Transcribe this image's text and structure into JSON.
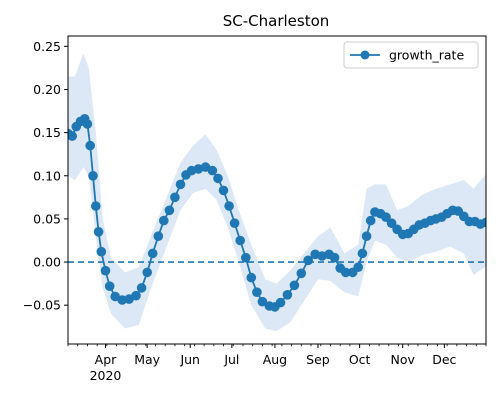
{
  "chart_data": {
    "type": "line",
    "title": "SC-Charleston",
    "xlabel": "",
    "ylabel": "",
    "x_range": [
      "2020-03-05",
      "2020-12-31"
    ],
    "ylim": [
      -0.095,
      0.262
    ],
    "y_ticks": [
      -0.05,
      0.0,
      0.05,
      0.1,
      0.15,
      0.2,
      0.25
    ],
    "y_tick_labels": [
      "−0.05",
      "0.00",
      "0.05",
      "0.10",
      "0.15",
      "0.20",
      "0.25"
    ],
    "x_ticks": [
      {
        "date": "2020-04-01",
        "label": "Apr",
        "sublabel": "2020"
      },
      {
        "date": "2020-05-01",
        "label": "May",
        "sublabel": ""
      },
      {
        "date": "2020-06-01",
        "label": "Jun",
        "sublabel": ""
      },
      {
        "date": "2020-07-01",
        "label": "Jul",
        "sublabel": ""
      },
      {
        "date": "2020-08-01",
        "label": "Aug",
        "sublabel": ""
      },
      {
        "date": "2020-09-01",
        "label": "Sep",
        "sublabel": ""
      },
      {
        "date": "2020-10-01",
        "label": "Oct",
        "sublabel": ""
      },
      {
        "date": "2020-11-01",
        "label": "Nov",
        "sublabel": ""
      },
      {
        "date": "2020-12-01",
        "label": "Dec",
        "sublabel": ""
      }
    ],
    "legend": {
      "placement": "upper-right",
      "entries": [
        "growth_rate"
      ]
    },
    "grid": false,
    "reference_line": {
      "y": 0.0,
      "style": "dashed"
    },
    "colors": {
      "series": "#1f77b4",
      "band": "#dce8f5",
      "axis": "#000000"
    },
    "series": [
      {
        "name": "growth_rate",
        "marker": "circle",
        "points": [
          {
            "date": "2020-03-05",
            "y": 0.149
          },
          {
            "date": "2020-03-08",
            "y": 0.146
          },
          {
            "date": "2020-03-11",
            "y": 0.157
          },
          {
            "date": "2020-03-14",
            "y": 0.163
          },
          {
            "date": "2020-03-17",
            "y": 0.166
          },
          {
            "date": "2020-03-19",
            "y": 0.16
          },
          {
            "date": "2020-03-21",
            "y": 0.135
          },
          {
            "date": "2020-03-23",
            "y": 0.1
          },
          {
            "date": "2020-03-25",
            "y": 0.065
          },
          {
            "date": "2020-03-27",
            "y": 0.035
          },
          {
            "date": "2020-03-29",
            "y": 0.012
          },
          {
            "date": "2020-04-01",
            "y": -0.01
          },
          {
            "date": "2020-04-04",
            "y": -0.028
          },
          {
            "date": "2020-04-08",
            "y": -0.04
          },
          {
            "date": "2020-04-13",
            "y": -0.044
          },
          {
            "date": "2020-04-18",
            "y": -0.043
          },
          {
            "date": "2020-04-23",
            "y": -0.039
          },
          {
            "date": "2020-04-27",
            "y": -0.03
          },
          {
            "date": "2020-05-01",
            "y": -0.012
          },
          {
            "date": "2020-05-05",
            "y": 0.01
          },
          {
            "date": "2020-05-09",
            "y": 0.03
          },
          {
            "date": "2020-05-13",
            "y": 0.048
          },
          {
            "date": "2020-05-17",
            "y": 0.06
          },
          {
            "date": "2020-05-21",
            "y": 0.075
          },
          {
            "date": "2020-05-25",
            "y": 0.09
          },
          {
            "date": "2020-05-29",
            "y": 0.101
          },
          {
            "date": "2020-06-02",
            "y": 0.106
          },
          {
            "date": "2020-06-07",
            "y": 0.108
          },
          {
            "date": "2020-06-12",
            "y": 0.11
          },
          {
            "date": "2020-06-17",
            "y": 0.106
          },
          {
            "date": "2020-06-21",
            "y": 0.097
          },
          {
            "date": "2020-06-25",
            "y": 0.083
          },
          {
            "date": "2020-06-29",
            "y": 0.065
          },
          {
            "date": "2020-07-03",
            "y": 0.045
          },
          {
            "date": "2020-07-07",
            "y": 0.025
          },
          {
            "date": "2020-07-11",
            "y": 0.005
          },
          {
            "date": "2020-07-15",
            "y": -0.018
          },
          {
            "date": "2020-07-19",
            "y": -0.035
          },
          {
            "date": "2020-07-23",
            "y": -0.046
          },
          {
            "date": "2020-07-28",
            "y": -0.051
          },
          {
            "date": "2020-08-01",
            "y": -0.052
          },
          {
            "date": "2020-08-05",
            "y": -0.047
          },
          {
            "date": "2020-08-10",
            "y": -0.038
          },
          {
            "date": "2020-08-15",
            "y": -0.027
          },
          {
            "date": "2020-08-20",
            "y": -0.013
          },
          {
            "date": "2020-08-25",
            "y": 0.002
          },
          {
            "date": "2020-08-30",
            "y": 0.009
          },
          {
            "date": "2020-09-04",
            "y": 0.007
          },
          {
            "date": "2020-09-09",
            "y": 0.009
          },
          {
            "date": "2020-09-13",
            "y": 0.005
          },
          {
            "date": "2020-09-17",
            "y": -0.007
          },
          {
            "date": "2020-09-21",
            "y": -0.012
          },
          {
            "date": "2020-09-26",
            "y": -0.012
          },
          {
            "date": "2020-09-30",
            "y": -0.006
          },
          {
            "date": "2020-10-03",
            "y": 0.01
          },
          {
            "date": "2020-10-06",
            "y": 0.03
          },
          {
            "date": "2020-10-09",
            "y": 0.048
          },
          {
            "date": "2020-10-12",
            "y": 0.058
          },
          {
            "date": "2020-10-16",
            "y": 0.056
          },
          {
            "date": "2020-10-20",
            "y": 0.052
          },
          {
            "date": "2020-10-24",
            "y": 0.045
          },
          {
            "date": "2020-10-28",
            "y": 0.038
          },
          {
            "date": "2020-11-01",
            "y": 0.032
          },
          {
            "date": "2020-11-05",
            "y": 0.033
          },
          {
            "date": "2020-11-09",
            "y": 0.038
          },
          {
            "date": "2020-11-13",
            "y": 0.043
          },
          {
            "date": "2020-11-17",
            "y": 0.045
          },
          {
            "date": "2020-11-21",
            "y": 0.048
          },
          {
            "date": "2020-11-25",
            "y": 0.05
          },
          {
            "date": "2020-11-29",
            "y": 0.052
          },
          {
            "date": "2020-12-03",
            "y": 0.056
          },
          {
            "date": "2020-12-07",
            "y": 0.06
          },
          {
            "date": "2020-12-11",
            "y": 0.059
          },
          {
            "date": "2020-12-15",
            "y": 0.053
          },
          {
            "date": "2020-12-19",
            "y": 0.047
          },
          {
            "date": "2020-12-23",
            "y": 0.047
          },
          {
            "date": "2020-12-27",
            "y": 0.044
          },
          {
            "date": "2020-12-31",
            "y": 0.046
          }
        ],
        "band": {
          "upper": [
            {
              "date": "2020-03-05",
              "y": 0.215
            },
            {
              "date": "2020-03-10",
              "y": 0.215
            },
            {
              "date": "2020-03-16",
              "y": 0.242
            },
            {
              "date": "2020-03-20",
              "y": 0.225
            },
            {
              "date": "2020-03-25",
              "y": 0.15
            },
            {
              "date": "2020-03-30",
              "y": 0.05
            },
            {
              "date": "2020-04-05",
              "y": 0.005
            },
            {
              "date": "2020-04-15",
              "y": -0.012
            },
            {
              "date": "2020-04-25",
              "y": -0.006
            },
            {
              "date": "2020-05-05",
              "y": 0.035
            },
            {
              "date": "2020-05-15",
              "y": 0.075
            },
            {
              "date": "2020-05-25",
              "y": 0.115
            },
            {
              "date": "2020-06-03",
              "y": 0.135
            },
            {
              "date": "2020-06-12",
              "y": 0.148
            },
            {
              "date": "2020-06-20",
              "y": 0.13
            },
            {
              "date": "2020-06-28",
              "y": 0.1
            },
            {
              "date": "2020-07-06",
              "y": 0.06
            },
            {
              "date": "2020-07-15",
              "y": 0.02
            },
            {
              "date": "2020-07-25",
              "y": -0.02
            },
            {
              "date": "2020-08-02",
              "y": -0.025
            },
            {
              "date": "2020-08-12",
              "y": -0.01
            },
            {
              "date": "2020-08-22",
              "y": 0.01
            },
            {
              "date": "2020-09-01",
              "y": 0.03
            },
            {
              "date": "2020-09-10",
              "y": 0.04
            },
            {
              "date": "2020-09-20",
              "y": 0.01
            },
            {
              "date": "2020-09-30",
              "y": 0.02
            },
            {
              "date": "2020-10-06",
              "y": 0.085
            },
            {
              "date": "2020-10-12",
              "y": 0.09
            },
            {
              "date": "2020-10-20",
              "y": 0.09
            },
            {
              "date": "2020-10-28",
              "y": 0.06
            },
            {
              "date": "2020-11-05",
              "y": 0.065
            },
            {
              "date": "2020-11-15",
              "y": 0.078
            },
            {
              "date": "2020-11-25",
              "y": 0.085
            },
            {
              "date": "2020-12-05",
              "y": 0.09
            },
            {
              "date": "2020-12-15",
              "y": 0.095
            },
            {
              "date": "2020-12-22",
              "y": 0.085
            },
            {
              "date": "2020-12-31",
              "y": 0.102
            }
          ],
          "lower": [
            {
              "date": "2020-03-05",
              "y": 0.1
            },
            {
              "date": "2020-03-10",
              "y": 0.095
            },
            {
              "date": "2020-03-16",
              "y": 0.11
            },
            {
              "date": "2020-03-20",
              "y": 0.1
            },
            {
              "date": "2020-03-25",
              "y": 0.03
            },
            {
              "date": "2020-03-30",
              "y": -0.03
            },
            {
              "date": "2020-04-05",
              "y": -0.06
            },
            {
              "date": "2020-04-15",
              "y": -0.077
            },
            {
              "date": "2020-04-25",
              "y": -0.073
            },
            {
              "date": "2020-05-05",
              "y": -0.025
            },
            {
              "date": "2020-05-15",
              "y": 0.018
            },
            {
              "date": "2020-05-25",
              "y": 0.06
            },
            {
              "date": "2020-06-03",
              "y": 0.08
            },
            {
              "date": "2020-06-12",
              "y": 0.085
            },
            {
              "date": "2020-06-20",
              "y": 0.072
            },
            {
              "date": "2020-06-28",
              "y": 0.04
            },
            {
              "date": "2020-07-06",
              "y": 0.0
            },
            {
              "date": "2020-07-15",
              "y": -0.05
            },
            {
              "date": "2020-07-25",
              "y": -0.077
            },
            {
              "date": "2020-08-02",
              "y": -0.08
            },
            {
              "date": "2020-08-12",
              "y": -0.07
            },
            {
              "date": "2020-08-22",
              "y": -0.045
            },
            {
              "date": "2020-09-01",
              "y": -0.02
            },
            {
              "date": "2020-09-10",
              "y": -0.022
            },
            {
              "date": "2020-09-20",
              "y": -0.035
            },
            {
              "date": "2020-09-30",
              "y": -0.04
            },
            {
              "date": "2020-10-06",
              "y": 0.0
            },
            {
              "date": "2020-10-12",
              "y": 0.025
            },
            {
              "date": "2020-10-20",
              "y": 0.02
            },
            {
              "date": "2020-10-28",
              "y": 0.005
            },
            {
              "date": "2020-11-05",
              "y": 0.0
            },
            {
              "date": "2020-11-15",
              "y": 0.008
            },
            {
              "date": "2020-11-25",
              "y": 0.012
            },
            {
              "date": "2020-12-05",
              "y": 0.018
            },
            {
              "date": "2020-12-15",
              "y": 0.01
            },
            {
              "date": "2020-12-22",
              "y": -0.015
            },
            {
              "date": "2020-12-31",
              "y": -0.005
            }
          ]
        }
      }
    ]
  }
}
